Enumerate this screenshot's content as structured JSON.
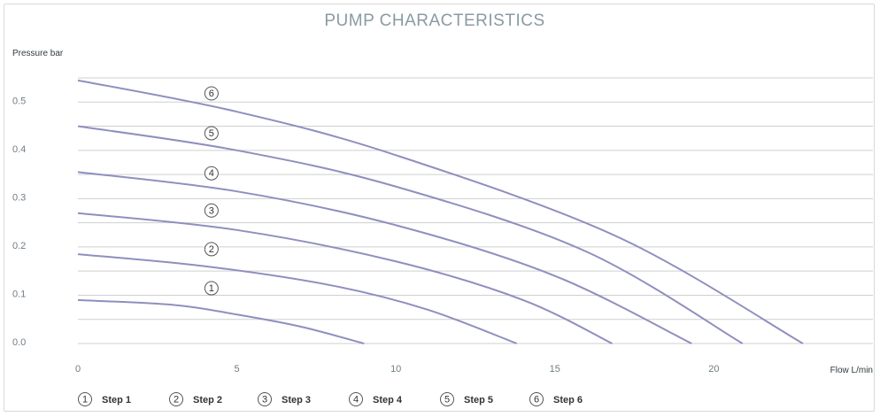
{
  "chart_data": {
    "type": "line",
    "title": "PUMP CHARACTERISTICS",
    "xlabel": "Flow L/min",
    "ylabel": "Pressure bar",
    "xlim": [
      0,
      25
    ],
    "ylim": [
      0,
      0.55
    ],
    "x_ticks": [
      "0",
      "5",
      "10",
      "15",
      "20"
    ],
    "y_ticks": [
      "0.0",
      "0.1",
      "0.2",
      "0.3",
      "0.4",
      "0.5"
    ],
    "grid": "horizontal",
    "legend_position": "bottom",
    "series": [
      {
        "name": "Step 1",
        "marker": "1",
        "x": [
          0,
          3,
          5,
          7,
          9
        ],
        "y": [
          0.09,
          0.08,
          0.06,
          0.035,
          0.0
        ]
      },
      {
        "name": "Step 2",
        "marker": "2",
        "x": [
          0,
          4,
          8,
          11,
          13.8
        ],
        "y": [
          0.185,
          0.16,
          0.12,
          0.07,
          0.0
        ]
      },
      {
        "name": "Step 3",
        "marker": "3",
        "x": [
          0,
          5,
          10,
          14,
          16.8
        ],
        "y": [
          0.27,
          0.235,
          0.17,
          0.09,
          0.0
        ]
      },
      {
        "name": "Step 4",
        "marker": "4",
        "x": [
          0,
          5,
          10,
          15,
          19.3
        ],
        "y": [
          0.355,
          0.315,
          0.245,
          0.14,
          0.0
        ]
      },
      {
        "name": "Step 5",
        "marker": "5",
        "x": [
          0,
          5,
          10,
          16,
          20.9
        ],
        "y": [
          0.45,
          0.4,
          0.325,
          0.19,
          0.0
        ]
      },
      {
        "name": "Step 6",
        "marker": "6",
        "x": [
          0,
          5,
          10,
          17,
          22.8
        ],
        "y": [
          0.545,
          0.48,
          0.39,
          0.22,
          0.0
        ]
      }
    ]
  }
}
